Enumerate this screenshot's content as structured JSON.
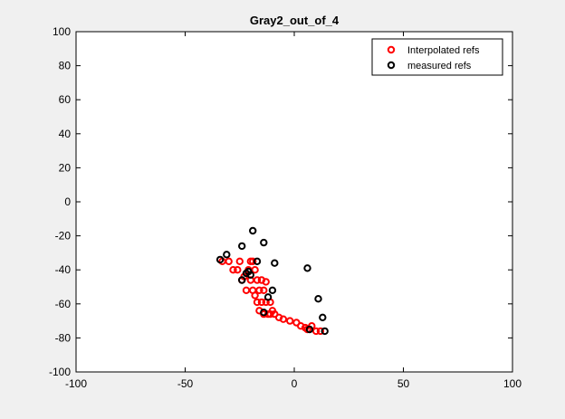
{
  "chart_data": {
    "type": "scatter",
    "title": "Gray2_out_of_4",
    "xlabel": "",
    "ylabel": "",
    "xlim": [
      -100,
      100
    ],
    "ylim": [
      -100,
      100
    ],
    "xticks": [
      -100,
      -50,
      0,
      50,
      100
    ],
    "yticks": [
      -100,
      -80,
      -60,
      -40,
      -20,
      0,
      20,
      40,
      60,
      80,
      100
    ],
    "grid": false,
    "legend_position": "top-right",
    "series": [
      {
        "name": "Interpolated refs",
        "color": "#ff0000",
        "marker": "circle-open",
        "points": [
          [
            -33,
            -35
          ],
          [
            -30,
            -35
          ],
          [
            -28,
            -40
          ],
          [
            -26,
            -40
          ],
          [
            -25,
            -35
          ],
          [
            -24,
            -46
          ],
          [
            -22,
            -52
          ],
          [
            -21,
            -40
          ],
          [
            -20,
            -35
          ],
          [
            -20,
            -46
          ],
          [
            -19,
            -52
          ],
          [
            -18,
            -40
          ],
          [
            -17,
            -46
          ],
          [
            -17,
            -59
          ],
          [
            -16,
            -52
          ],
          [
            -15,
            -46
          ],
          [
            -15,
            -59
          ],
          [
            -14,
            -52
          ],
          [
            -14,
            -66
          ],
          [
            -13,
            -59
          ],
          [
            -12,
            -66
          ],
          [
            -11,
            -59
          ],
          [
            -11,
            -66
          ],
          [
            -10,
            -64
          ],
          [
            -9,
            -66
          ],
          [
            -7,
            -68
          ],
          [
            -5,
            -69
          ],
          [
            -2,
            -70
          ],
          [
            1,
            -71
          ],
          [
            3,
            -73
          ],
          [
            5,
            -74
          ],
          [
            6,
            -75
          ],
          [
            8,
            -73
          ],
          [
            10,
            -76
          ],
          [
            12,
            -76
          ],
          [
            -23,
            -44
          ],
          [
            -19,
            -35
          ],
          [
            -13,
            -47
          ],
          [
            -16,
            -64
          ],
          [
            -18,
            -55
          ]
        ]
      },
      {
        "name": "measured refs",
        "color": "#000000",
        "marker": "circle-open",
        "points": [
          [
            -34,
            -34
          ],
          [
            -31,
            -31
          ],
          [
            -24,
            -26
          ],
          [
            -21,
            -41
          ],
          [
            -20,
            -43
          ],
          [
            -19,
            -17
          ],
          [
            -17,
            -35
          ],
          [
            -14,
            -24
          ],
          [
            -12,
            -56
          ],
          [
            -14,
            -65
          ],
          [
            -9,
            -36
          ],
          [
            -10,
            -52
          ],
          [
            6,
            -39
          ],
          [
            11,
            -57
          ],
          [
            13,
            -68
          ],
          [
            14,
            -76
          ],
          [
            7,
            -75
          ],
          [
            -22,
            -42
          ],
          [
            -24,
            -46
          ]
        ]
      }
    ]
  }
}
